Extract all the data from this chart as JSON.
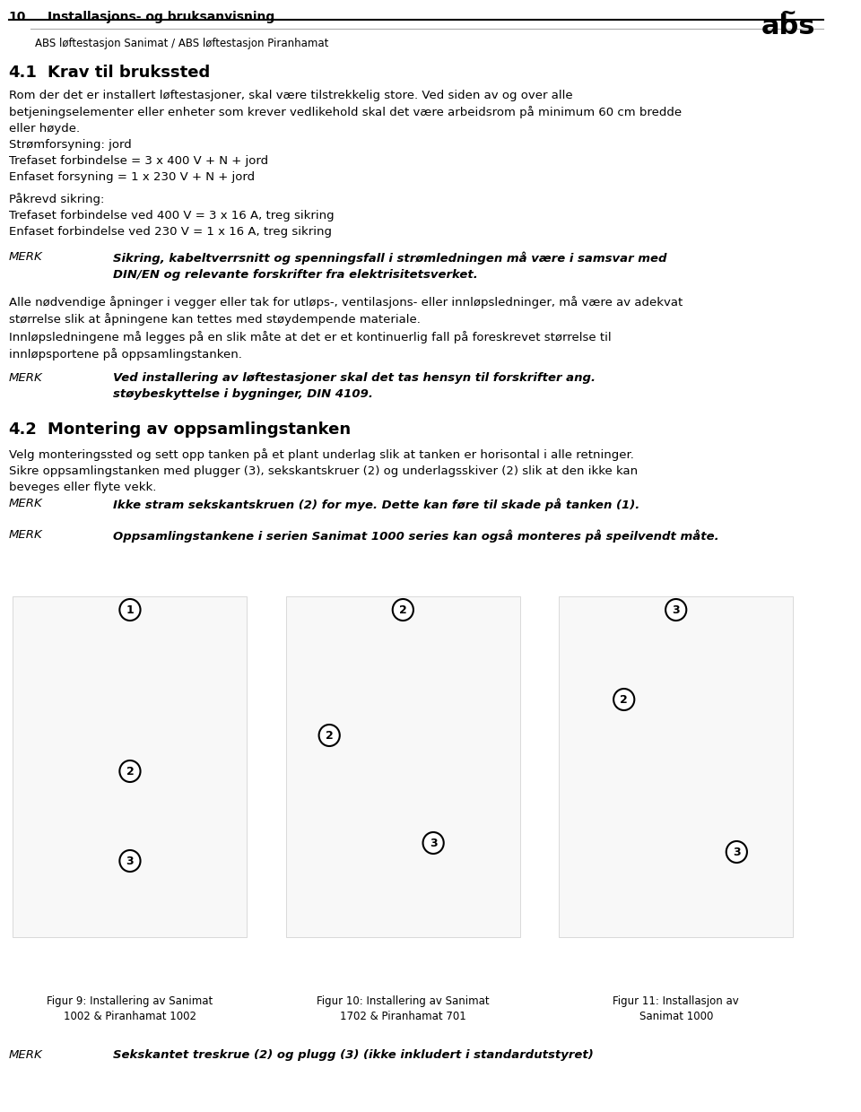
{
  "page_number": "10",
  "header_title": "Installasjons- og bruksanvisning",
  "header_subtitle": "ABS løftestasjon Sanimat / ABS løftestasjon Piranhamat",
  "section_number": "4.1",
  "section_title": "Krav til brukssted",
  "body_paragraphs": [
    "Rom der det er installert løftestasjoner, skal være tilstrekkelig store. Ved siden av og over alle\nbetjeningselementer eller enheter som krever vedlikehold skal det være arbeidsrom på minimum 60 cm bredde\neller høyde.",
    "Strømforsyning: jord\nTrefaset forbindelse = 3 x 400 V + N + jord\nEnfaset forsyning = 1 x 230 V + N + jord",
    "Påkrevd sikring:\nTrefaset forbindelse ved 400 V = 3 x 16 A, treg sikring\nEnfaset forbindelse ved 230 V = 1 x 16 A, treg sikring"
  ],
  "merk_blocks": [
    {
      "label": "MERK",
      "text": "Sikring, kabeltverrsnitt og spenningsfall i strømledningen må være i samsvar med\nDIN/EN og relevante forskrifter fra elektrisitetsverket.",
      "bold": true
    },
    {
      "label": "MERK",
      "text": "Ved installering av løftestasjoner skal det tas hensyn til forskrifter ang.\nstøybeskyttelse i bygninger, DIN 4109.",
      "bold": true
    },
    {
      "label": "MERK",
      "text": "Ikke stram sekskantskruen (2) for mye. Dette kan føre til skade på tanken (1).",
      "bold": true
    },
    {
      "label": "MERK",
      "text": "Oppsamlingstankene i serien Sanimat 1000 series kan også monteres på speilvendt måte.",
      "bold": true
    },
    {
      "label": "MERK",
      "text": "Sekskantet treskrue (2) og plugg (3) (ikke inkludert i standardutstyret)",
      "bold": true
    }
  ],
  "paragraph_after_merk1": "Alle nødvendige åpninger i vegger eller tak for utløps-, ventilasjons- eller innløpsledninger, må være av adekvat\nstørrelse slik at åpningene kan tettes med støydempende materiale.\nInnløpsledningene må legges på en slik måte at det er et kontinuerlig fall på foreskrevet størrelse til\ninnløpsportene på oppsamlingstanken.",
  "section_number_2": "4.2",
  "section_title_2": "Montering av oppsamlingstanken",
  "body_paragraph_2": "Velg monteringssted og sett opp tanken på et plant underlag slik at tanken er horisontal i alle retninger.\nSikre oppsamlingstanken med plugger (3), sekskantskruer (2) og underlagsskiver (2) slik at den ikke kan\nbeveges eller flyte vekk.",
  "figure_captions": [
    "Figur 9: Installering av Sanimat\n1002 & Piranhamat 1002",
    "Figur 10: Installering av Sanimat\n1702 & Piranhamat 701",
    "Figur 11: Installasjon av\nSanimat 1000"
  ],
  "bg_color": "#ffffff",
  "text_color": "#000000",
  "header_line_color": "#000000",
  "font_size_body": 9.5,
  "font_size_header": 10,
  "font_size_section": 13,
  "font_size_page": 10
}
